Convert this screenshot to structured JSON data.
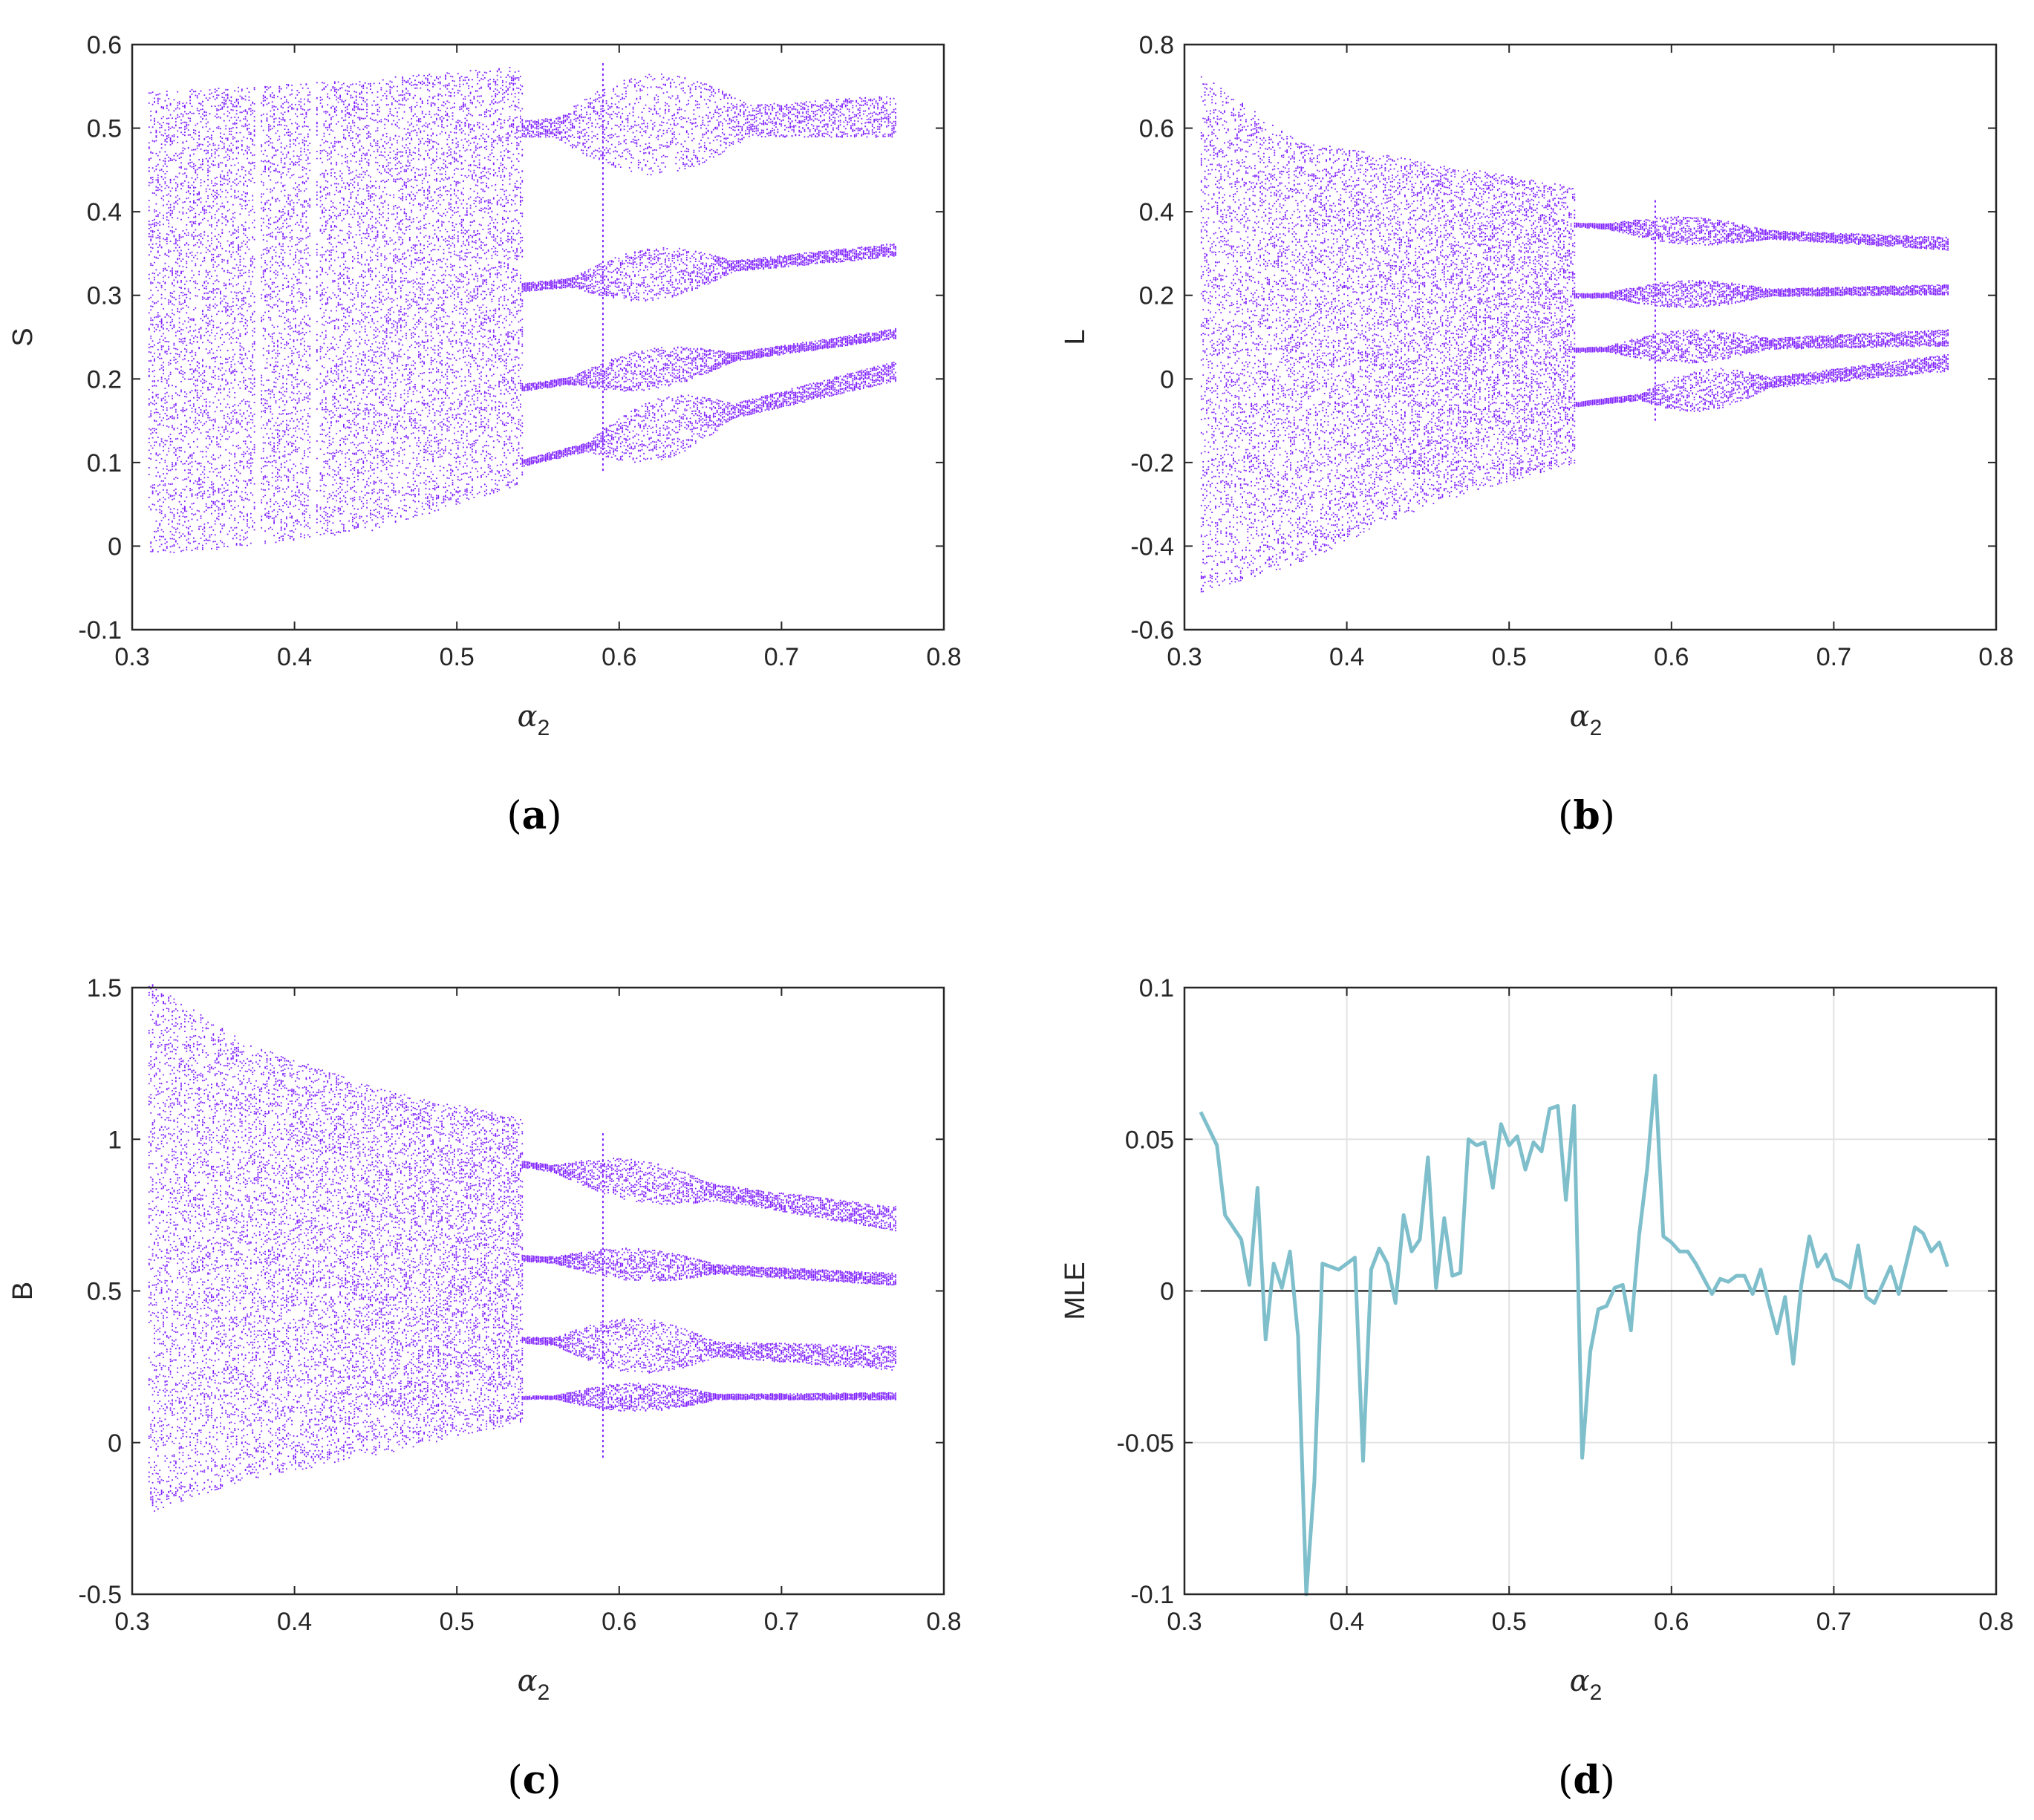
{
  "chart_data": [
    {
      "id": "a",
      "type": "scatter",
      "panel_label": "a",
      "xlabel": "α",
      "xlabel_sub": "2",
      "ylabel": "S",
      "xlim": [
        0.3,
        0.8
      ],
      "ylim": [
        -0.1,
        0.6
      ],
      "xticks": [
        "0.3",
        "0.4",
        "0.5",
        "0.6",
        "0.7",
        "0.8"
      ],
      "yticks": [
        "-0.1",
        "0",
        "0.1",
        "0.2",
        "0.3",
        "0.4",
        "0.5",
        "0.6"
      ],
      "color": "#7f1fff",
      "x_range": [
        0.31,
        0.77
      ],
      "chaotic_region": [
        [
          0.31,
          -0.01,
          0.545
        ],
        [
          0.37,
          0.0,
          0.55
        ],
        [
          0.45,
          0.02,
          0.56
        ],
        [
          0.54,
          0.075,
          0.575
        ]
      ],
      "gaps_x": [
        0.375,
        0.38,
        0.41,
        0.415
      ],
      "bands": [
        {
          "x": [
            0.54,
            0.77
          ],
          "center": [
            0.5,
            0.515
          ],
          "half_width": [
            0.01,
            0.025
          ],
          "bulge_x": [
            0.56,
            0.68
          ],
          "bulge_amp": 0.045
        },
        {
          "x": [
            0.54,
            0.77
          ],
          "center": [
            0.31,
            0.355
          ],
          "half_width": [
            0.005,
            0.008
          ],
          "bulge_x": [
            0.57,
            0.67
          ],
          "bulge_amp": 0.025
        },
        {
          "x": [
            0.54,
            0.77
          ],
          "center": [
            0.19,
            0.255
          ],
          "half_width": [
            0.004,
            0.006
          ],
          "bulge_x": [
            0.57,
            0.67
          ],
          "bulge_amp": 0.02
        },
        {
          "x": [
            0.54,
            0.77
          ],
          "center": [
            0.1,
            0.21
          ],
          "half_width": [
            0.004,
            0.012
          ],
          "bulge_x": [
            0.58,
            0.67
          ],
          "bulge_amp": 0.03
        }
      ],
      "spike": {
        "x": 0.59,
        "range": [
          0.09,
          0.58
        ]
      }
    },
    {
      "id": "b",
      "type": "scatter",
      "panel_label": "b",
      "xlabel": "α",
      "xlabel_sub": "2",
      "ylabel": "L",
      "xlim": [
        0.3,
        0.8
      ],
      "ylim": [
        -0.6,
        0.8
      ],
      "xticks": [
        "0.3",
        "0.4",
        "0.5",
        "0.6",
        "0.7",
        "0.8"
      ],
      "yticks": [
        "-0.6",
        "-0.4",
        "-0.2",
        "0",
        "0.2",
        "0.4",
        "0.6",
        "0.8"
      ],
      "color": "#7f1fff",
      "x_range": [
        0.31,
        0.77
      ],
      "chaotic_region": [
        [
          0.31,
          -0.51,
          0.73
        ],
        [
          0.37,
          -0.44,
          0.57
        ],
        [
          0.45,
          -0.3,
          0.52
        ],
        [
          0.54,
          -0.2,
          0.46
        ]
      ],
      "gaps_x": [],
      "bands": [
        {
          "x": [
            0.54,
            0.77
          ],
          "center": [
            0.37,
            0.325
          ],
          "half_width": [
            0.005,
            0.015
          ],
          "bulge_x": [
            0.56,
            0.66
          ],
          "bulge_amp": 0.025
        },
        {
          "x": [
            0.54,
            0.77
          ],
          "center": [
            0.2,
            0.215
          ],
          "half_width": [
            0.005,
            0.012
          ],
          "bulge_x": [
            0.56,
            0.66
          ],
          "bulge_amp": 0.025
        },
        {
          "x": [
            0.54,
            0.77
          ],
          "center": [
            0.07,
            0.1
          ],
          "half_width": [
            0.005,
            0.02
          ],
          "bulge_x": [
            0.56,
            0.66
          ],
          "bulge_amp": 0.03
        },
        {
          "x": [
            0.54,
            0.77
          ],
          "center": [
            -0.06,
            0.04
          ],
          "half_width": [
            0.005,
            0.02
          ],
          "bulge_x": [
            0.58,
            0.66
          ],
          "bulge_amp": 0.04
        }
      ],
      "spike": {
        "x": 0.59,
        "range": [
          -0.1,
          0.43
        ]
      }
    },
    {
      "id": "c",
      "type": "scatter",
      "panel_label": "c",
      "xlabel": "α",
      "xlabel_sub": "2",
      "ylabel": "B",
      "xlim": [
        0.3,
        0.8
      ],
      "ylim": [
        -0.5,
        1.5
      ],
      "xticks": [
        "0.3",
        "0.4",
        "0.5",
        "0.6",
        "0.7",
        "0.8"
      ],
      "yticks": [
        "-0.5",
        "0",
        "0.5",
        "1",
        "1.5"
      ],
      "color": "#7f1fff",
      "x_range": [
        0.31,
        0.77
      ],
      "chaotic_region": [
        [
          0.31,
          -0.23,
          1.52
        ],
        [
          0.37,
          -0.12,
          1.32
        ],
        [
          0.45,
          -0.04,
          1.17
        ],
        [
          0.54,
          0.07,
          1.07
        ]
      ],
      "gaps_x": [],
      "bands": [
        {
          "x": [
            0.54,
            0.77
          ],
          "center": [
            0.92,
            0.74
          ],
          "half_width": [
            0.01,
            0.04
          ],
          "bulge_x": [
            0.56,
            0.66
          ],
          "bulge_amp": 0.05
        },
        {
          "x": [
            0.54,
            0.77
          ],
          "center": [
            0.61,
            0.54
          ],
          "half_width": [
            0.01,
            0.02
          ],
          "bulge_x": [
            0.56,
            0.66
          ],
          "bulge_amp": 0.04
        },
        {
          "x": [
            0.54,
            0.77
          ],
          "center": [
            0.34,
            0.28
          ],
          "half_width": [
            0.01,
            0.04
          ],
          "bulge_x": [
            0.56,
            0.66
          ],
          "bulge_amp": 0.07
        },
        {
          "x": [
            0.54,
            0.77
          ],
          "center": [
            0.15,
            0.155
          ],
          "half_width": [
            0.005,
            0.012
          ],
          "bulge_x": [
            0.56,
            0.66
          ],
          "bulge_amp": 0.04
        }
      ],
      "spike": {
        "x": 0.59,
        "range": [
          -0.05,
          1.02
        ]
      }
    },
    {
      "id": "d",
      "type": "line",
      "panel_label": "d",
      "xlabel": "α",
      "xlabel_sub": "2",
      "ylabel": "MLE",
      "xlim": [
        0.3,
        0.8
      ],
      "ylim": [
        -0.1,
        0.1
      ],
      "xticks": [
        "0.3",
        "0.4",
        "0.5",
        "0.6",
        "0.7",
        "0.8"
      ],
      "yticks": [
        "-0.1",
        "-0.05",
        "0",
        "0.05",
        "0.1"
      ],
      "grid": true,
      "zero_line": true,
      "color": "#7fbfcc",
      "x": [
        0.31,
        0.32,
        0.325,
        0.335,
        0.34,
        0.345,
        0.35,
        0.355,
        0.36,
        0.365,
        0.37,
        0.375,
        0.38,
        0.385,
        0.39,
        0.395,
        0.4,
        0.405,
        0.41,
        0.415,
        0.42,
        0.425,
        0.43,
        0.435,
        0.44,
        0.445,
        0.45,
        0.455,
        0.46,
        0.465,
        0.47,
        0.475,
        0.48,
        0.485,
        0.49,
        0.495,
        0.5,
        0.505,
        0.51,
        0.515,
        0.52,
        0.525,
        0.53,
        0.535,
        0.54,
        0.545,
        0.55,
        0.555,
        0.56,
        0.565,
        0.57,
        0.575,
        0.58,
        0.585,
        0.59,
        0.595,
        0.6,
        0.605,
        0.61,
        0.615,
        0.62,
        0.625,
        0.63,
        0.635,
        0.64,
        0.645,
        0.65,
        0.655,
        0.66,
        0.665,
        0.67,
        0.675,
        0.68,
        0.685,
        0.69,
        0.695,
        0.7,
        0.705,
        0.71,
        0.715,
        0.72,
        0.725,
        0.73,
        0.735,
        0.74,
        0.745,
        0.75,
        0.755,
        0.76,
        0.765,
        0.77
      ],
      "y": [
        0.059,
        0.048,
        0.025,
        0.017,
        0.002,
        0.034,
        -0.016,
        0.009,
        0.001,
        0.013,
        -0.015,
        -0.1,
        -0.063,
        0.009,
        0.008,
        0.007,
        0.009,
        0.011,
        -0.056,
        0.007,
        0.014,
        0.009,
        -0.004,
        0.025,
        0.013,
        0.017,
        0.044,
        0.001,
        0.024,
        0.005,
        0.006,
        0.05,
        0.048,
        0.049,
        0.034,
        0.055,
        0.048,
        0.051,
        0.04,
        0.049,
        0.046,
        0.06,
        0.061,
        0.03,
        0.061,
        -0.055,
        -0.02,
        -0.006,
        -0.005,
        0.001,
        0.002,
        -0.013,
        0.018,
        0.04,
        0.071,
        0.018,
        0.016,
        0.013,
        0.013,
        0.009,
        0.004,
        -0.001,
        0.004,
        0.003,
        0.005,
        0.005,
        -0.001,
        0.007,
        -0.004,
        -0.014,
        -0.002,
        -0.024,
        0.002,
        0.018,
        0.008,
        0.012,
        0.004,
        0.003,
        0.001,
        0.015,
        -0.002,
        -0.004,
        0.002,
        0.008,
        -0.001,
        0.01,
        0.021,
        0.019,
        0.013,
        0.016,
        0.008
      ]
    }
  ]
}
